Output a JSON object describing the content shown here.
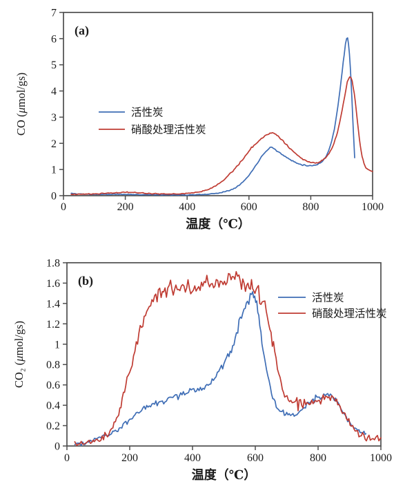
{
  "page": {
    "background": "#ffffff"
  },
  "chart_data": [
    {
      "id": "a",
      "type": "line",
      "panel_label": "(a)",
      "xlabel": "温度（℃）",
      "ylabel": "CO (μmol/gs)",
      "xlim": [
        0,
        1000
      ],
      "ylim": [
        0,
        7
      ],
      "xticks": [
        0,
        200,
        400,
        600,
        800,
        1000
      ],
      "xtick_labels": [
        "0",
        "200",
        "400",
        "600",
        "800",
        "1000"
      ],
      "yticks": [
        0,
        1,
        2,
        3,
        4,
        5,
        6,
        7
      ],
      "ytick_labels": [
        "0",
        "1",
        "2",
        "3",
        "4",
        "5",
        "6",
        "7"
      ],
      "grid": false,
      "legend_position": "inside-left",
      "series": [
        {
          "name": "活性炭",
          "color": "#3e6db5",
          "noise": 0.02,
          "points": [
            [
              25,
              0.09
            ],
            [
              40,
              0.07
            ],
            [
              60,
              0.06
            ],
            [
              90,
              0.05
            ],
            [
              120,
              0.05
            ],
            [
              160,
              0.05
            ],
            [
              200,
              0.05
            ],
            [
              240,
              0.04
            ],
            [
              280,
              0.04
            ],
            [
              320,
              0.03
            ],
            [
              360,
              0.03
            ],
            [
              400,
              0.03
            ],
            [
              440,
              0.04
            ],
            [
              470,
              0.06
            ],
            [
              500,
              0.1
            ],
            [
              520,
              0.15
            ],
            [
              540,
              0.22
            ],
            [
              560,
              0.34
            ],
            [
              580,
              0.52
            ],
            [
              600,
              0.78
            ],
            [
              620,
              1.12
            ],
            [
              640,
              1.48
            ],
            [
              655,
              1.7
            ],
            [
              668,
              1.84
            ],
            [
              678,
              1.82
            ],
            [
              690,
              1.72
            ],
            [
              710,
              1.55
            ],
            [
              730,
              1.4
            ],
            [
              750,
              1.28
            ],
            [
              770,
              1.19
            ],
            [
              790,
              1.15
            ],
            [
              810,
              1.16
            ],
            [
              830,
              1.25
            ],
            [
              850,
              1.52
            ],
            [
              868,
              2.1
            ],
            [
              884,
              3.1
            ],
            [
              898,
              4.4
            ],
            [
              908,
              5.4
            ],
            [
              916,
              6.03
            ],
            [
              922,
              5.8
            ],
            [
              928,
              4.9
            ],
            [
              933,
              3.7
            ],
            [
              938,
              2.4
            ],
            [
              942,
              1.45
            ]
          ]
        },
        {
          "name": "硝酸处理活性炭",
          "color": "#bf3b32",
          "noise": 0.024,
          "points": [
            [
              25,
              0.05
            ],
            [
              60,
              0.06
            ],
            [
              100,
              0.07
            ],
            [
              140,
              0.09
            ],
            [
              180,
              0.12
            ],
            [
              210,
              0.13
            ],
            [
              240,
              0.11
            ],
            [
              280,
              0.08
            ],
            [
              320,
              0.07
            ],
            [
              360,
              0.07
            ],
            [
              400,
              0.09
            ],
            [
              430,
              0.13
            ],
            [
              455,
              0.19
            ],
            [
              480,
              0.3
            ],
            [
              500,
              0.44
            ],
            [
              520,
              0.62
            ],
            [
              540,
              0.85
            ],
            [
              560,
              1.1
            ],
            [
              580,
              1.4
            ],
            [
              600,
              1.7
            ],
            [
              620,
              1.97
            ],
            [
              640,
              2.18
            ],
            [
              655,
              2.32
            ],
            [
              668,
              2.4
            ],
            [
              680,
              2.37
            ],
            [
              695,
              2.25
            ],
            [
              715,
              2.02
            ],
            [
              735,
              1.78
            ],
            [
              755,
              1.56
            ],
            [
              775,
              1.39
            ],
            [
              795,
              1.28
            ],
            [
              815,
              1.26
            ],
            [
              835,
              1.33
            ],
            [
              855,
              1.55
            ],
            [
              875,
              2.0
            ],
            [
              890,
              2.6
            ],
            [
              905,
              3.5
            ],
            [
              918,
              4.32
            ],
            [
              926,
              4.55
            ],
            [
              934,
              4.35
            ],
            [
              944,
              3.6
            ],
            [
              954,
              2.5
            ],
            [
              963,
              1.7
            ],
            [
              972,
              1.25
            ],
            [
              982,
              1.03
            ],
            [
              1000,
              0.93
            ]
          ]
        }
      ]
    },
    {
      "id": "b",
      "type": "line",
      "panel_label": "(b)",
      "xlabel": "温度（℃）",
      "ylabel": "CO₂ (μmol/gs)",
      "xlim": [
        0,
        1000
      ],
      "ylim": [
        0,
        1.8
      ],
      "xticks": [
        0,
        200,
        400,
        600,
        800,
        1000
      ],
      "xtick_labels": [
        "0",
        "200",
        "400",
        "600",
        "800",
        "1000"
      ],
      "yticks": [
        0,
        0.2,
        0.4,
        0.6,
        0.8,
        1.0,
        1.2,
        1.4,
        1.6,
        1.8
      ],
      "ytick_labels": [
        "0",
        "0.2",
        "0.4",
        "0.6",
        "0.8",
        "1",
        "1.2",
        "1.4",
        "1.6",
        "1.8"
      ],
      "grid": false,
      "legend_position": "inside-right",
      "series": [
        {
          "name": "活性炭",
          "color": "#3e6db5",
          "noise": 0.028,
          "points": [
            [
              25,
              0.02
            ],
            [
              50,
              0.03
            ],
            [
              75,
              0.05
            ],
            [
              100,
              0.08
            ],
            [
              125,
              0.11
            ],
            [
              150,
              0.14
            ],
            [
              175,
              0.2
            ],
            [
              200,
              0.26
            ],
            [
              225,
              0.32
            ],
            [
              250,
              0.37
            ],
            [
              275,
              0.41
            ],
            [
              300,
              0.44
            ],
            [
              325,
              0.46
            ],
            [
              350,
              0.49
            ],
            [
              375,
              0.52
            ],
            [
              400,
              0.54
            ],
            [
              425,
              0.56
            ],
            [
              450,
              0.6
            ],
            [
              475,
              0.68
            ],
            [
              500,
              0.79
            ],
            [
              520,
              0.93
            ],
            [
              540,
              1.12
            ],
            [
              560,
              1.3
            ],
            [
              575,
              1.43
            ],
            [
              588,
              1.5
            ],
            [
              598,
              1.43
            ],
            [
              608,
              1.32
            ],
            [
              618,
              1.12
            ],
            [
              632,
              0.82
            ],
            [
              648,
              0.56
            ],
            [
              663,
              0.41
            ],
            [
              678,
              0.34
            ],
            [
              700,
              0.32
            ],
            [
              720,
              0.31
            ],
            [
              740,
              0.34
            ],
            [
              760,
              0.39
            ],
            [
              780,
              0.44
            ],
            [
              800,
              0.47
            ],
            [
              818,
              0.5
            ],
            [
              835,
              0.5
            ],
            [
              852,
              0.46
            ],
            [
              870,
              0.38
            ],
            [
              890,
              0.28
            ],
            [
              910,
              0.2
            ],
            [
              930,
              0.15
            ],
            [
              952,
              0.12
            ]
          ]
        },
        {
          "name": "硝酸处理活性炭",
          "color": "#bf3b32",
          "noise": 0.045,
          "points": [
            [
              25,
              0.02
            ],
            [
              50,
              0.03
            ],
            [
              75,
              0.04
            ],
            [
              100,
              0.06
            ],
            [
              125,
              0.1
            ],
            [
              150,
              0.2
            ],
            [
              165,
              0.33
            ],
            [
              180,
              0.5
            ],
            [
              200,
              0.72
            ],
            [
              225,
              1.05
            ],
            [
              250,
              1.32
            ],
            [
              275,
              1.45
            ],
            [
              300,
              1.5
            ],
            [
              330,
              1.53
            ],
            [
              360,
              1.55
            ],
            [
              390,
              1.53
            ],
            [
              420,
              1.55
            ],
            [
              450,
              1.57
            ],
            [
              480,
              1.59
            ],
            [
              510,
              1.62
            ],
            [
              535,
              1.63
            ],
            [
              560,
              1.61
            ],
            [
              580,
              1.58
            ],
            [
              595,
              1.53
            ],
            [
              610,
              1.5
            ],
            [
              622,
              1.44
            ],
            [
              635,
              1.31
            ],
            [
              650,
              1.1
            ],
            [
              662,
              0.93
            ],
            [
              675,
              0.7
            ],
            [
              690,
              0.53
            ],
            [
              705,
              0.46
            ],
            [
              722,
              0.42
            ],
            [
              740,
              0.41
            ],
            [
              760,
              0.42
            ],
            [
              780,
              0.44
            ],
            [
              800,
              0.45
            ],
            [
              820,
              0.47
            ],
            [
              835,
              0.48
            ],
            [
              852,
              0.45
            ],
            [
              870,
              0.38
            ],
            [
              890,
              0.28
            ],
            [
              910,
              0.18
            ],
            [
              930,
              0.12
            ],
            [
              950,
              0.09
            ],
            [
              975,
              0.07
            ],
            [
              1000,
              0.08
            ]
          ]
        }
      ]
    }
  ],
  "style": {
    "axis_color": "#4d4d4d",
    "text_color": "#1a1a1a"
  }
}
